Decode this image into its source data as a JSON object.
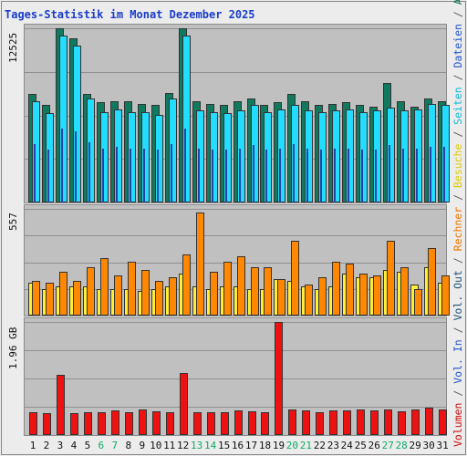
{
  "title": "Tages-Statistik im Monat Dezember 2025",
  "legend": [
    {
      "text": "Volumen",
      "color": "#cc1111"
    },
    {
      "text": " / ",
      "color": "#555555"
    },
    {
      "text": "Vol. In",
      "color": "#2255cc"
    },
    {
      "text": " / ",
      "color": "#555555"
    },
    {
      "text": "Vol. Out",
      "color": "#225577"
    },
    {
      "text": " / ",
      "color": "#555555"
    },
    {
      "text": "Rechner",
      "color": "#ee7700"
    },
    {
      "text": " / ",
      "color": "#555555"
    },
    {
      "text": "Besuche",
      "color": "#ddcc00"
    },
    {
      "text": " / ",
      "color": "#555555"
    },
    {
      "text": "Seiten",
      "color": "#11bbdd"
    },
    {
      "text": " / ",
      "color": "#555555"
    },
    {
      "text": "Dateien",
      "color": "#2255cc"
    },
    {
      "text": " / ",
      "color": "#555555"
    },
    {
      "text": "Anfragen",
      "color": "#117755"
    }
  ],
  "chart_data": {
    "type": "bar",
    "categories": [
      "1",
      "2",
      "3",
      "4",
      "5",
      "6",
      "7",
      "8",
      "9",
      "10",
      "11",
      "12",
      "13",
      "14",
      "15",
      "16",
      "17",
      "18",
      "19",
      "20",
      "21",
      "22",
      "23",
      "24",
      "25",
      "26",
      "27",
      "28",
      "29",
      "30",
      "31"
    ],
    "weekend_days": [
      "6",
      "7",
      "13",
      "14",
      "20",
      "21",
      "27",
      "28"
    ],
    "weekend_color": "#11aa66",
    "panels": [
      {
        "ymax_label": "12525",
        "ymax": 12525,
        "series": [
          {
            "name": "Anfragen",
            "color": "#117a5e",
            "values": [
              7800,
              7000,
              12525,
              11800,
              7800,
              7200,
              7300,
              7300,
              7100,
              7000,
              7900,
              12525,
              7300,
              7100,
              7000,
              7300,
              7500,
              7000,
              7200,
              7800,
              7300,
              7000,
              7100,
              7200,
              7000,
              6900,
              8600,
              7300,
              6900,
              7500,
              7300
            ]
          },
          {
            "name": "Seiten",
            "color": "#22ddff",
            "values": [
              7300,
              6400,
              12000,
              11300,
              7500,
              6500,
              6700,
              6500,
              6500,
              6300,
              7500,
              12000,
              6600,
              6500,
              6400,
              6600,
              7000,
              6500,
              6700,
              7000,
              6600,
              6500,
              6600,
              6700,
              6500,
              6600,
              6800,
              6600,
              6700,
              7100,
              7000
            ]
          }
        ],
        "inner_lines": {
          "name": "Dateien",
          "color": "#2244aa",
          "values": [
            4200,
            3800,
            5300,
            5100,
            4300,
            3900,
            4000,
            3900,
            3900,
            3800,
            4200,
            5300,
            3900,
            3800,
            3800,
            3900,
            4100,
            3800,
            3900,
            4200,
            3900,
            3800,
            3900,
            3900,
            3800,
            3800,
            4100,
            3900,
            3900,
            4000,
            4000
          ]
        }
      },
      {
        "ymax_label": "557",
        "ymax": 557,
        "series": [
          {
            "name": "Besuche",
            "color": "#ffee33",
            "values": [
              170,
              140,
              150,
              150,
              150,
              140,
              140,
              140,
              130,
              140,
              150,
              220,
              150,
              140,
              150,
              150,
              140,
              140,
              190,
              180,
              150,
              140,
              150,
              220,
              200,
              200,
              240,
              230,
              160,
              250,
              170
            ]
          },
          {
            "name": "Rechner",
            "color": "#ff8800",
            "values": [
              180,
              170,
              230,
              180,
              250,
              300,
              210,
              280,
              240,
              180,
              200,
              320,
              540,
              230,
              280,
              310,
              250,
              250,
              190,
              390,
              160,
              200,
              280,
              270,
              220,
              210,
              390,
              250,
              140,
              350,
              210
            ]
          }
        ]
      },
      {
        "ymax_label": "1.96 GB",
        "ymax": 1.96,
        "series": [
          {
            "name": "Volumen",
            "color": "#ee1111",
            "values": [
              0.4,
              0.38,
              1.05,
              0.38,
              0.4,
              0.4,
              0.42,
              0.4,
              0.44,
              0.41,
              0.4,
              1.07,
              0.4,
              0.4,
              0.4,
              0.42,
              0.41,
              0.4,
              1.96,
              0.45,
              0.43,
              0.4,
              0.42,
              0.42,
              0.44,
              0.42,
              0.44,
              0.41,
              0.44,
              0.48,
              0.44
            ]
          }
        ]
      }
    ]
  }
}
